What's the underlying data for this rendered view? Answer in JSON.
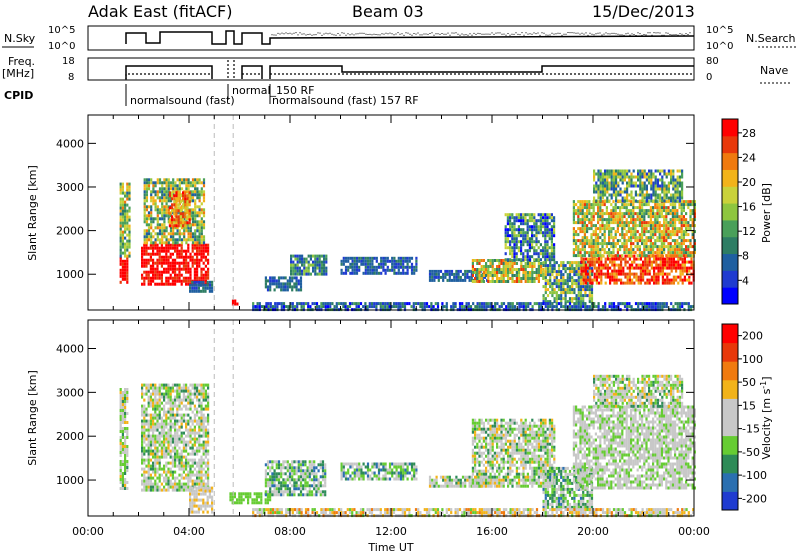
{
  "header": {
    "station": "Adak East (fitACF)",
    "beam": "Beam 03",
    "date": "15/Dec/2013"
  },
  "strip_labels": {
    "nsky": "N.Sky",
    "nsearch": "N.Search",
    "freq_line1": "Freq.",
    "freq_line2": "[MHz]",
    "nave": "Nave",
    "cpid": "CPID"
  },
  "strip_ticks": {
    "nsky_left": [
      "10^5",
      "10^0"
    ],
    "nsearch_right": [
      "10^5",
      "10^0"
    ],
    "freq_left": [
      "18",
      "8"
    ],
    "nave_right": [
      "80",
      "0"
    ]
  },
  "cpid_labels": [
    {
      "text": "normalsound (fast)",
      "t": 1.2
    },
    {
      "text": "normal_150 RF",
      "t": 5.8
    },
    {
      "text": "normalsound (fast) 157 RF",
      "t": 6.3
    }
  ],
  "chart_data": [
    {
      "type": "heatmap",
      "name": "power",
      "ylabel": "Slant Range [km]",
      "xlabel": "Time UT",
      "x_tick_labels": [
        "00:00",
        "04:00",
        "08:00",
        "12:00",
        "16:00",
        "20:00",
        "00:00"
      ],
      "x_hours": [
        0,
        4,
        8,
        12,
        16,
        20,
        24
      ],
      "y_ticks": [
        1000,
        2000,
        3000,
        4000
      ],
      "ylim": [
        180,
        4650
      ],
      "colorbar": {
        "label": "Power [dB]",
        "ticks": [
          "4",
          "8",
          "12",
          "16",
          "20",
          "24",
          "28"
        ],
        "colors": [
          "#0000ff",
          "#1f3bd0",
          "#1f5fa0",
          "#2e7d64",
          "#4aa05a",
          "#8ec63f",
          "#c9d23a",
          "#f2b31a",
          "#f07a0e",
          "#e8380a",
          "#ff0000"
        ]
      },
      "echo_regions": [
        {
          "t0": 1.25,
          "t1": 1.55,
          "r0": 800,
          "r1": 1400,
          "level": 10,
          "noise": 1
        },
        {
          "t0": 1.25,
          "t1": 1.6,
          "r0": 1400,
          "r1": 3100,
          "level": 5,
          "noise": 3
        },
        {
          "t0": 2.1,
          "t1": 4.8,
          "r0": 800,
          "r1": 1700,
          "level": 10,
          "noise": 1
        },
        {
          "t0": 2.2,
          "t1": 4.6,
          "r0": 1700,
          "r1": 3200,
          "level": 5,
          "noise": 3
        },
        {
          "t0": 3.2,
          "t1": 4.0,
          "r0": 2100,
          "r1": 2900,
          "level": 8,
          "noise": 2
        },
        {
          "t0": 4.0,
          "t1": 4.9,
          "r0": 600,
          "r1": 850,
          "level": 2,
          "noise": 1
        },
        {
          "t0": 5.7,
          "t1": 5.9,
          "r0": 300,
          "r1": 420,
          "level": 10,
          "noise": 0
        },
        {
          "t0": 7.0,
          "t1": 8.4,
          "r0": 650,
          "r1": 950,
          "level": 2,
          "noise": 1
        },
        {
          "t0": 8.0,
          "t1": 9.4,
          "r0": 1000,
          "r1": 1450,
          "level": 3,
          "noise": 2
        },
        {
          "t0": 10.0,
          "t1": 13.0,
          "r0": 1000,
          "r1": 1400,
          "level": 2,
          "noise": 1
        },
        {
          "t0": 13.5,
          "t1": 15.8,
          "r0": 850,
          "r1": 1100,
          "level": 2,
          "noise": 1
        },
        {
          "t0": 15.2,
          "t1": 18.0,
          "r0": 850,
          "r1": 1350,
          "level": 6,
          "noise": 3
        },
        {
          "t0": 16.5,
          "t1": 18.5,
          "r0": 1300,
          "r1": 2400,
          "level": 3,
          "noise": 3
        },
        {
          "t0": 18.0,
          "t1": 20.0,
          "r0": 350,
          "r1": 1300,
          "level": 4,
          "noise": 3
        },
        {
          "t0": 19.5,
          "t1": 24.0,
          "r0": 800,
          "r1": 1450,
          "level": 9,
          "noise": 2
        },
        {
          "t0": 19.2,
          "t1": 24.0,
          "r0": 1450,
          "r1": 2700,
          "level": 6,
          "noise": 3
        },
        {
          "t0": 20.0,
          "t1": 23.5,
          "r0": 2700,
          "r1": 3400,
          "level": 4,
          "noise": 3
        },
        {
          "t0": 6.5,
          "t1": 24.0,
          "r0": 200,
          "r1": 360,
          "level": 2,
          "noise": 2
        }
      ]
    },
    {
      "type": "heatmap",
      "name": "velocity",
      "ylabel": "Slant Range [km]",
      "xlabel": "Time UT",
      "x_tick_labels": [
        "00:00",
        "04:00",
        "08:00",
        "12:00",
        "16:00",
        "20:00",
        "00:00"
      ],
      "x_hours": [
        0,
        4,
        8,
        12,
        16,
        20,
        24
      ],
      "y_ticks": [
        1000,
        2000,
        3000,
        4000
      ],
      "ylim": [
        180,
        4650
      ],
      "colorbar": {
        "label": "Velocity [m s^-1]",
        "ticks": [
          "200",
          "100",
          "50",
          "15",
          "-15",
          "-50",
          "-100",
          "-200"
        ],
        "colors": [
          "#1f3bd0",
          "#2a6fb0",
          "#2e8b57",
          "#66cc33",
          "#c8c8c8",
          "#c8c8c8",
          "#f2b31a",
          "#f07a0e",
          "#e8380a",
          "#ff0000"
        ]
      },
      "echo_regions": [
        {
          "t0": 1.25,
          "t1": 1.55,
          "r0": 800,
          "r1": 3100,
          "level": 4,
          "noise": 2
        },
        {
          "t0": 2.1,
          "t1": 4.8,
          "r0": 800,
          "r1": 3200,
          "level": 4,
          "noise": 2
        },
        {
          "t0": 4.0,
          "t1": 4.9,
          "r0": 300,
          "r1": 850,
          "level": 5,
          "noise": 1
        },
        {
          "t0": 5.6,
          "t1": 7.2,
          "r0": 450,
          "r1": 720,
          "level": 3,
          "noise": 0
        },
        {
          "t0": 7.0,
          "t1": 9.4,
          "r0": 650,
          "r1": 1450,
          "level": 3,
          "noise": 2
        },
        {
          "t0": 10.0,
          "t1": 13.0,
          "r0": 1000,
          "r1": 1400,
          "level": 3,
          "noise": 2
        },
        {
          "t0": 13.5,
          "t1": 16.0,
          "r0": 850,
          "r1": 1100,
          "level": 4,
          "noise": 2
        },
        {
          "t0": 15.2,
          "t1": 18.5,
          "r0": 850,
          "r1": 2400,
          "level": 4,
          "noise": 2
        },
        {
          "t0": 18.0,
          "t1": 20.0,
          "r0": 350,
          "r1": 1300,
          "level": 3,
          "noise": 2
        },
        {
          "t0": 19.2,
          "t1": 24.0,
          "r0": 800,
          "r1": 2700,
          "level": 4,
          "noise": 1
        },
        {
          "t0": 20.0,
          "t1": 23.5,
          "r0": 2700,
          "r1": 3400,
          "level": 4,
          "noise": 2
        },
        {
          "t0": 6.5,
          "t1": 24.0,
          "r0": 200,
          "r1": 360,
          "level": 5,
          "noise": 2
        }
      ]
    }
  ]
}
